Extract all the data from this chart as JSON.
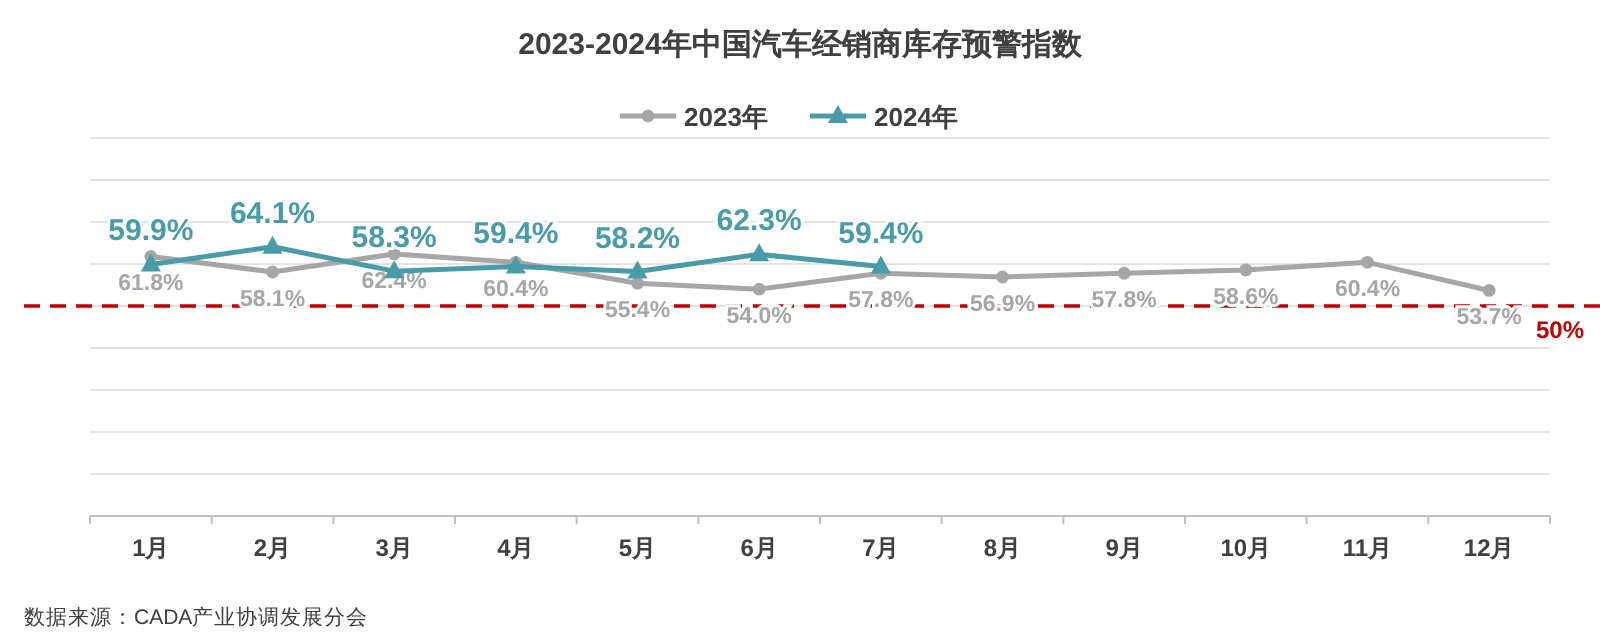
{
  "chart_data": {
    "type": "line",
    "title": "2023-2024年中国汽车经销商库存预警指数",
    "categories": [
      "1月",
      "2月",
      "3月",
      "4月",
      "5月",
      "6月",
      "7月",
      "8月",
      "9月",
      "10月",
      "11月",
      "12月"
    ],
    "series": [
      {
        "name": "2023年",
        "color": "#a6a6a6",
        "marker": "circle",
        "values": [
          61.8,
          58.1,
          62.4,
          60.4,
          55.4,
          54.0,
          57.8,
          56.9,
          57.8,
          58.6,
          60.4,
          53.7
        ],
        "value_labels": [
          "61.8%",
          "58.1%",
          "62.4%",
          "60.4%",
          "55.4%",
          "54.0%",
          "57.8%",
          "56.9%",
          "57.8%",
          "58.6%",
          "60.4%",
          "53.7%"
        ]
      },
      {
        "name": "2024年",
        "color": "#4a9ba8",
        "marker": "triangle",
        "values": [
          59.9,
          64.1,
          58.3,
          59.4,
          58.2,
          62.3,
          59.4,
          null,
          null,
          null,
          null,
          null
        ],
        "value_labels": [
          "59.9%",
          "64.1%",
          "58.3%",
          "59.4%",
          "58.2%",
          "62.3%",
          "59.4%",
          null,
          null,
          null,
          null,
          null
        ]
      }
    ],
    "ylim": [
      0,
      90
    ],
    "yticks": [
      {
        "value": 0,
        "label": null
      },
      {
        "value": 10,
        "label": null
      },
      {
        "value": 20,
        "label": null
      },
      {
        "value": 30,
        "label": null
      },
      {
        "value": 40,
        "label": null
      },
      {
        "value": 50,
        "label": null
      },
      {
        "value": 60,
        "label": null
      },
      {
        "value": 70,
        "label": null
      },
      {
        "value": 80,
        "label": null
      },
      {
        "value": 90,
        "label": null
      }
    ],
    "grid": "y",
    "legend": "top",
    "tick_labels": "x",
    "ref_lines": [
      {
        "axis": "y",
        "value": 50,
        "label": "50%",
        "color": "#c00000",
        "line_style": "dashed"
      }
    ],
    "annotations": [
      "数据来源：CADA产业协调发展分会"
    ]
  }
}
